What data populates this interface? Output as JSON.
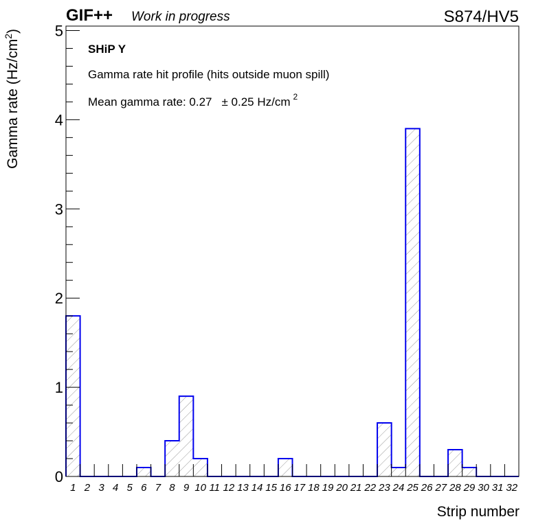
{
  "header": {
    "brand": "GIF++",
    "status": "Work in progress",
    "run_label": "S874/HV5"
  },
  "annotations": {
    "detector": "SHiP Y",
    "description": "Gamma rate hit profile (hits outside muon spill)",
    "mean_prefix": "Mean gamma rate: 0.27",
    "mean_error": "± 0.25 Hz/cm",
    "mean_error_exp": "2"
  },
  "colors": {
    "bar_stroke": "#0000ee",
    "hatch": "#8c8c8c",
    "axis": "#000000"
  },
  "chart_data": {
    "type": "bar",
    "title": "",
    "xlabel": "Strip number",
    "ylabel": "Gamma rate (Hz/cm",
    "ylabel_exp": "2",
    "ylabel_suffix": ")",
    "xlim": [
      0.5,
      32.5
    ],
    "ylim": [
      0,
      5.05
    ],
    "y_ticks": [
      0,
      1,
      2,
      3,
      4,
      5
    ],
    "categories": [
      "1",
      "2",
      "3",
      "4",
      "5",
      "6",
      "7",
      "8",
      "9",
      "10",
      "11",
      "12",
      "13",
      "14",
      "15",
      "16",
      "17",
      "18",
      "19",
      "20",
      "21",
      "22",
      "23",
      "24",
      "25",
      "26",
      "27",
      "28",
      "29",
      "30",
      "31",
      "32"
    ],
    "values": [
      1.8,
      0,
      0,
      0,
      0,
      0.1,
      0,
      0.4,
      0.9,
      0.2,
      0,
      0,
      0,
      0,
      0,
      0.2,
      0,
      0,
      0,
      0,
      0,
      0,
      0.6,
      0.1,
      3.9,
      0,
      0,
      0.3,
      0.1,
      0,
      0,
      0
    ],
    "grid": false,
    "hatched": true
  }
}
